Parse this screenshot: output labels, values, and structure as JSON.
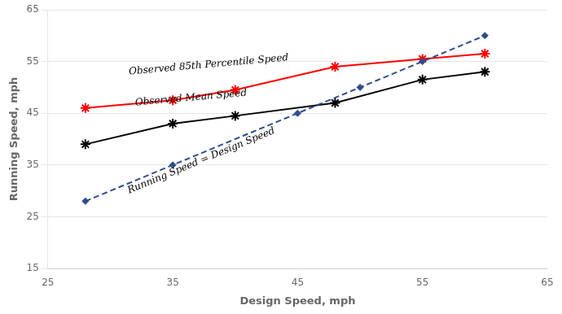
{
  "chart_data": {
    "type": "line",
    "x_label": "Design Speed, mph",
    "y_label": "Running Speed, mph",
    "xlim": [
      25,
      65
    ],
    "ylim": [
      15,
      65
    ],
    "xticks": [
      25,
      35,
      45,
      55,
      65
    ],
    "yticks": [
      15,
      25,
      35,
      45,
      55,
      65
    ],
    "grid": "y",
    "series": [
      {
        "name": "Running Speed = Design Speed",
        "color": "#2e4d8c",
        "line_style": "dashed",
        "marker": "diamond",
        "x": [
          28,
          35,
          45,
          50,
          55,
          60
        ],
        "values": [
          28,
          35,
          45,
          50,
          55,
          60
        ]
      },
      {
        "name": "Observed 85th Percentile Speed",
        "color": "#ff0000",
        "line_style": "solid",
        "marker": "star",
        "x": [
          28,
          35,
          40,
          48,
          55,
          60
        ],
        "values": [
          46,
          47.5,
          49.5,
          54.0,
          55.5,
          56.5
        ]
      },
      {
        "name": "Observed Mean Speed",
        "color": "#000000",
        "line_style": "solid",
        "marker": "star",
        "x": [
          28,
          35,
          40,
          48,
          55,
          60
        ],
        "values": [
          39,
          43.0,
          44.5,
          47.0,
          51.5,
          53.0
        ]
      }
    ],
    "annotations": [
      {
        "text": "Observed 85th Percentile Speed",
        "x": 31.5,
        "y": 52.5
      },
      {
        "text": "Observed Mean Speed",
        "x": 32.0,
        "y": 46.5
      },
      {
        "text": "Running Speed = Design Speed",
        "x": 31.5,
        "y": 29.5
      }
    ]
  }
}
